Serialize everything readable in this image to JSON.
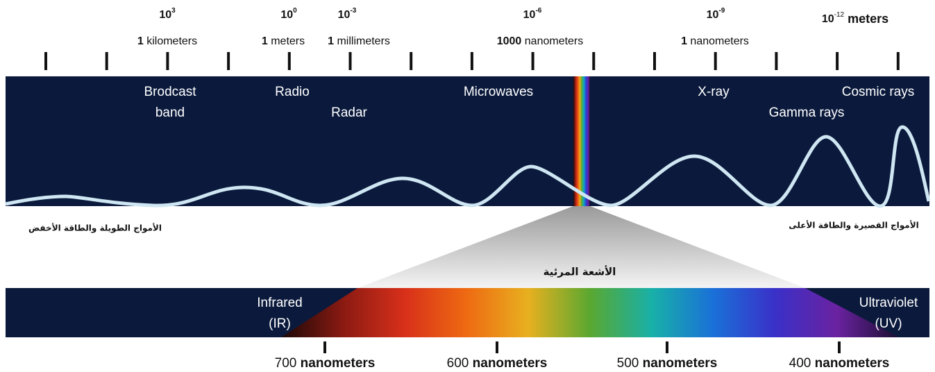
{
  "scale": {
    "marks": [
      {
        "base": "10",
        "exp": "3",
        "num": "1",
        "unit": "kilometers"
      },
      {
        "base": "10",
        "exp": "0",
        "num": "1",
        "unit": "meters"
      },
      {
        "base": "10",
        "exp": "-3",
        "num": "1",
        "unit": "millimeters"
      },
      {
        "base": "10",
        "exp": "-6",
        "num": "1000",
        "unit": "nanometers"
      },
      {
        "base": "10",
        "exp": "-9",
        "num": "1",
        "unit": "nanometers"
      }
    ],
    "last": {
      "base": "10",
      "exp": "-12",
      "unit": "meters"
    }
  },
  "bands": {
    "broadcast": [
      "Brodcast",
      "band"
    ],
    "radio": "Radio",
    "radar": "Radar",
    "microwaves": "Microwaves",
    "xray": "X-ray",
    "gamma": "Gamma rays",
    "cosmic": "Cosmic rays"
  },
  "captions": {
    "long_low": "الأمواج الطويلة والطاقة الأخفض",
    "short_high": "الأمواج القصيرة والطاقة الأعلى",
    "visible": "الأشعة المرئية"
  },
  "visible_band": {
    "infrared": [
      "Infrared",
      "(IR)"
    ],
    "ultraviolet": [
      "Ultraviolet",
      "(UV)"
    ],
    "ticks": [
      {
        "num": "700",
        "unit": "nanometers"
      },
      {
        "num": "600",
        "unit": "nanometers"
      },
      {
        "num": "500",
        "unit": "nanometers"
      },
      {
        "num": "400",
        "unit": "nanometers"
      }
    ]
  }
}
